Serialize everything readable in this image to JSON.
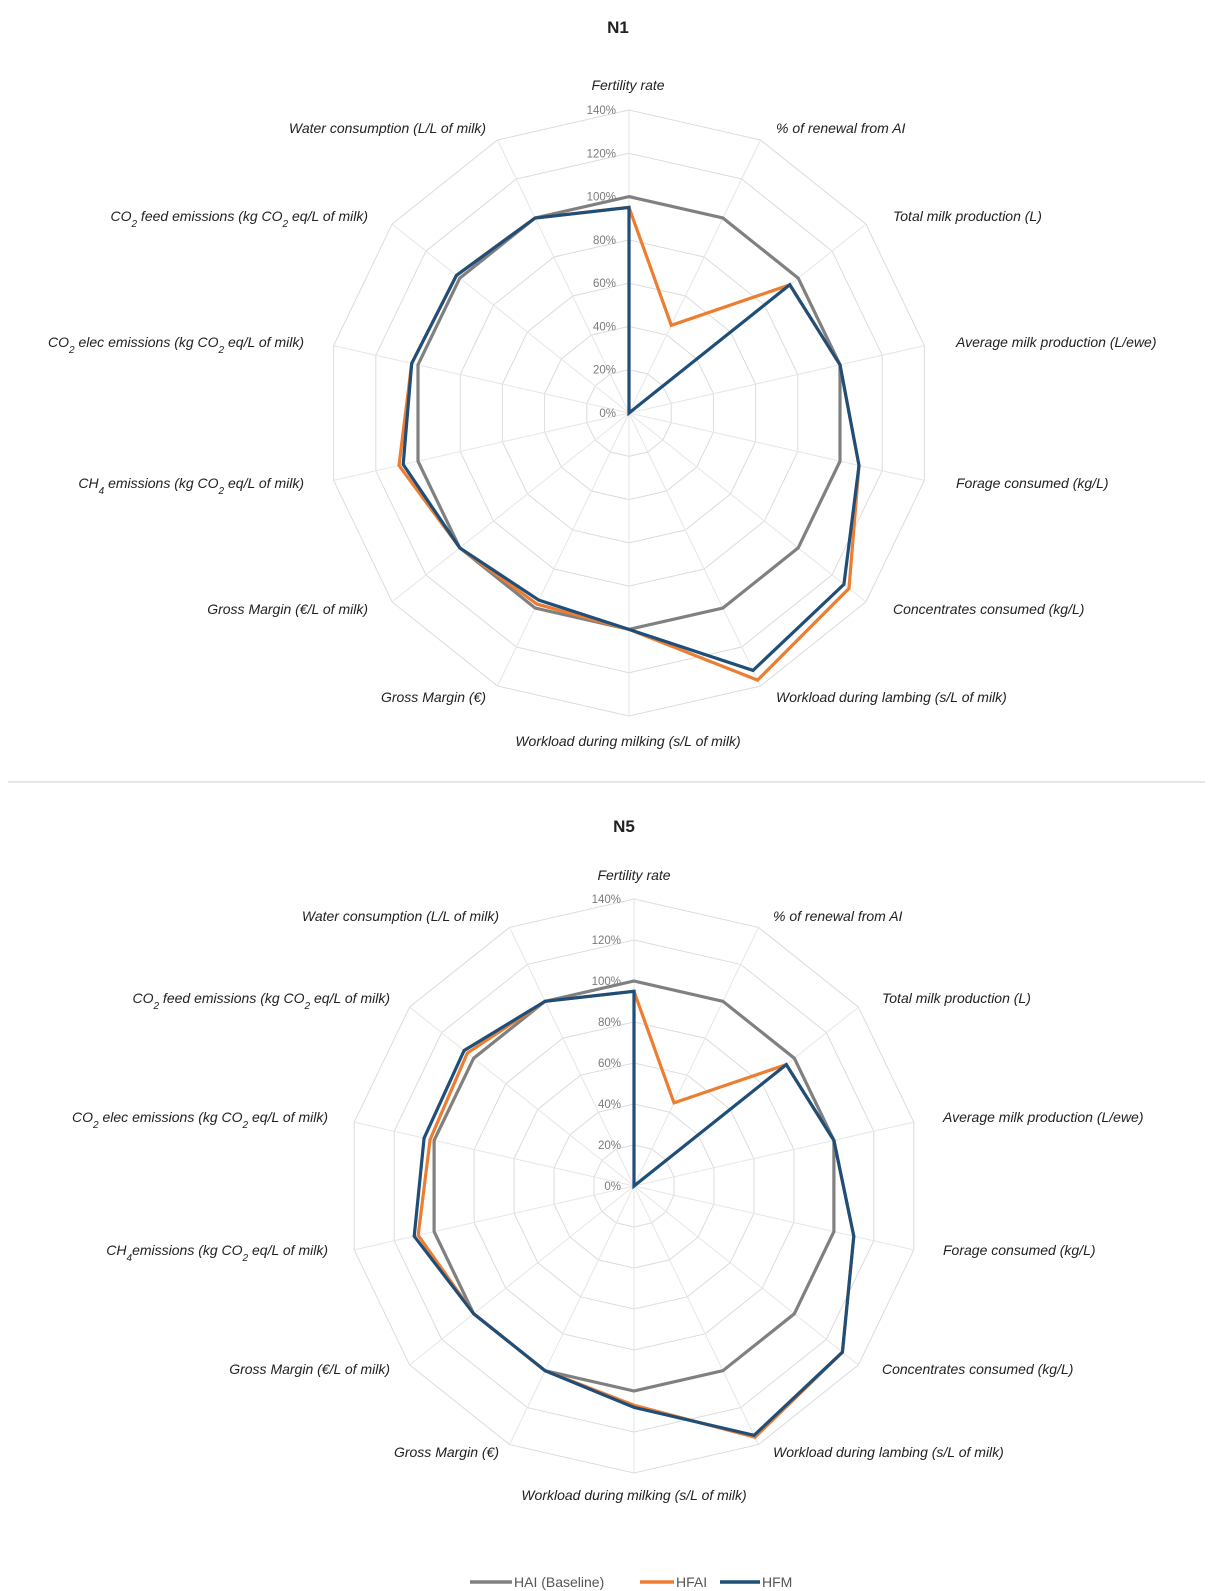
{
  "colors": {
    "HAI (Baseline)": "#808080",
    "HFAI": "#ed7d31",
    "HFM": "#1f4e79"
  },
  "legend": {
    "items": [
      {
        "label": "HAI (Baseline)",
        "color": "#808080"
      },
      {
        "label": "HFAI",
        "color": "#ed7d31"
      },
      {
        "label": "HFM",
        "color": "#1f4e79"
      }
    ]
  },
  "chart_data": [
    {
      "type": "radar",
      "title": "N1",
      "rlim": [
        0,
        140
      ],
      "ticks": [
        "0%",
        "20%",
        "40%",
        "60%",
        "80%",
        "100%",
        "120%",
        "140%"
      ],
      "grid": true,
      "axes": [
        "Fertility rate",
        "% of renewal from AI",
        "Total milk production (L)",
        "Average milk production (L/ewe)",
        "Forage consumed (kg/L)",
        "Concentrates consumed (kg/L)",
        "Workload during lambing (s/L of milk)",
        "Workload during milking (s/L of milk)",
        "Gross Margin (€)",
        "Gross Margin (€/L of milk)",
        "CH4 emissions (kg CO2 eq/L of milk)",
        "CO2 elec emissions (kg CO2 eq/L of milk)",
        "CO2 feed emissions (kg CO2 eq/L of milk)",
        "Water consumption (L/L of milk)"
      ],
      "series": [
        {
          "name": "HAI (Baseline)",
          "values": [
            100,
            100,
            100,
            100,
            100,
            100,
            100,
            100,
            100,
            100,
            100,
            100,
            100,
            100
          ]
        },
        {
          "name": "HFAI",
          "values": [
            95,
            45,
            95,
            100,
            109,
            130,
            137,
            100,
            98,
            100,
            109,
            103,
            102,
            100
          ]
        },
        {
          "name": "HFM",
          "values": [
            95,
            0,
            95,
            100,
            109,
            127,
            132,
            100,
            96,
            100,
            107,
            103,
            102,
            100
          ]
        }
      ]
    },
    {
      "type": "radar",
      "title": "N5",
      "rlim": [
        0,
        140
      ],
      "ticks": [
        "0%",
        "20%",
        "40%",
        "60%",
        "80%",
        "100%",
        "120%",
        "140%"
      ],
      "grid": true,
      "axes": [
        "Fertility rate",
        "% of renewal from AI",
        "Total milk production (L)",
        "Average milk production (L/ewe)",
        "Forage consumed (kg/L)",
        "Concentrates consumed (kg/L)",
        "Workload during lambing (s/L of milk)",
        "Workload during milking (s/L of milk)",
        "Gross Margin (€)",
        "Gross Margin (€/L of milk)",
        "CH4emissions (kg CO2 eq/L of milk)",
        "CO2 elec emissions (kg CO2 eq/L of milk)",
        "CO2 feed emissions (kg CO2 eq/L of milk)",
        "Water consumption (L/L of milk)"
      ],
      "series": [
        {
          "name": "HAI (Baseline)",
          "values": [
            100,
            100,
            100,
            100,
            100,
            100,
            100,
            100,
            100,
            100,
            100,
            100,
            100,
            100
          ]
        },
        {
          "name": "HFAI",
          "values": [
            95,
            45,
            95,
            100,
            110,
            130,
            136,
            107,
            100,
            100,
            108,
            102,
            104,
            100
          ]
        },
        {
          "name": "HFM",
          "values": [
            95,
            0,
            95,
            100,
            110,
            130,
            135,
            108,
            100,
            100,
            110,
            105,
            106,
            100
          ]
        }
      ]
    }
  ]
}
